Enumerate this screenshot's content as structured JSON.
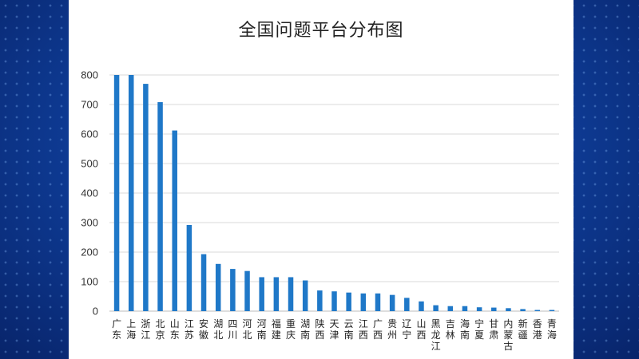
{
  "chart_data": {
    "type": "bar",
    "title": "全国问题平台分布图",
    "categories": [
      "广东",
      "上海",
      "浙江",
      "北京",
      "山东",
      "江苏",
      "安徽",
      "湖北",
      "四川",
      "河北",
      "河南",
      "福建",
      "重庆",
      "湖南",
      "陕西",
      "天津",
      "云南",
      "江西",
      "广西",
      "贵州",
      "辽宁",
      "山西",
      "黑龙江",
      "吉林",
      "海南",
      "宁夏",
      "甘肃",
      "内蒙古",
      "新疆",
      "香港",
      "青海"
    ],
    "values": [
      800,
      800,
      770,
      708,
      612,
      292,
      193,
      160,
      143,
      136,
      115,
      115,
      115,
      104,
      70,
      67,
      63,
      60,
      60,
      55,
      45,
      33,
      20,
      17,
      17,
      13,
      12,
      10,
      7,
      4,
      4
    ],
    "ylim": [
      0,
      800
    ],
    "yticks": [
      0,
      100,
      200,
      300,
      400,
      500,
      600,
      700,
      800
    ],
    "grid": true,
    "bar_color": "#1f78c8",
    "xlabel": "",
    "ylabel": ""
  }
}
